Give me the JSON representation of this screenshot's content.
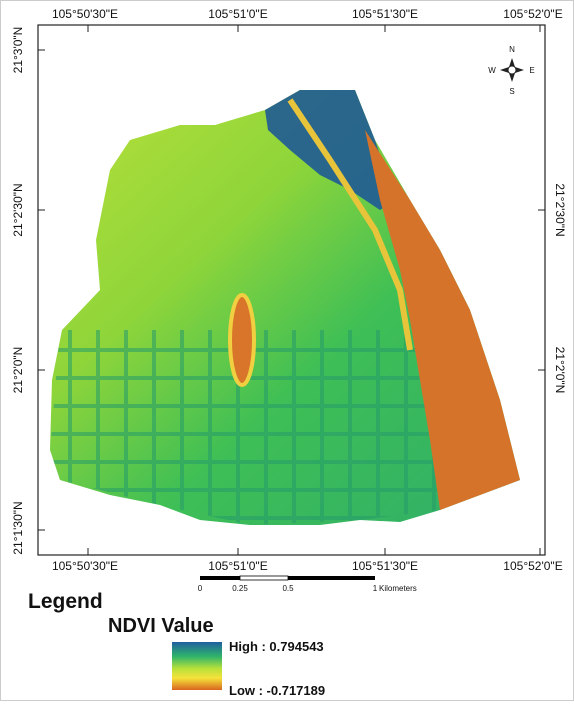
{
  "map": {
    "top_labels": [
      "105°50'30\"E",
      "105°51'0\"E",
      "105°51'30\"E",
      "105°52'0\"E"
    ],
    "bottom_labels": [
      "105°50'30\"E",
      "105°51'0\"E",
      "105°51'30\"E",
      "105°52'0\"E"
    ],
    "left_labels": [
      "21°3'0\"N",
      "21°2'30\"N",
      "21°2'0\"N",
      "21°1'30\"N"
    ],
    "right_labels": [
      "21°2'30\"N",
      "21°2'0\"N"
    ],
    "compass": {
      "n": "N",
      "s": "S",
      "e": "E",
      "w": "W"
    },
    "scale_bar": {
      "labels": [
        "0",
        "0.25",
        "0.5",
        "1"
      ],
      "unit": "Kilometers"
    }
  },
  "legend": {
    "title": "Legend",
    "subtitle": "NDVI Value",
    "high": "High : 0.794543",
    "low": "Low : -0.717189"
  }
}
